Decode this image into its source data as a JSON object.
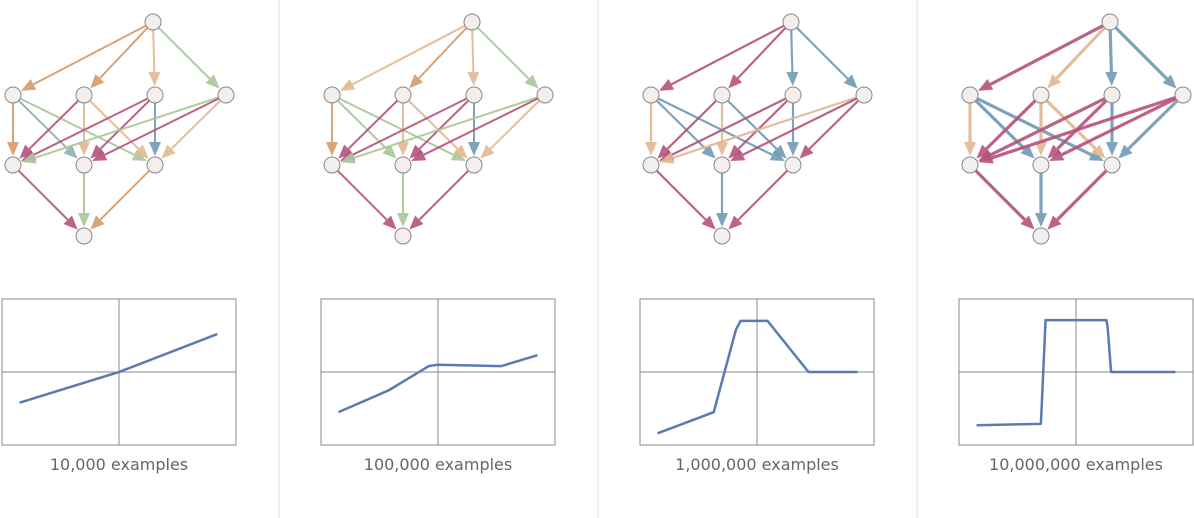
{
  "panels": [
    {
      "caption": "10,000 examples",
      "edge_colors": [
        "#d49a6a",
        "#d49a6a",
        "#e2b890",
        "#a8c69b",
        "#d49a6a",
        "#8fb0ad",
        "#a8c69b",
        "#b5527a",
        "#e2b890",
        "#e2b890",
        "#b5527a",
        "#b5527a",
        "#6f9ab5",
        "#a8c69b",
        "#b5527a",
        "#e2b890",
        "#b5527a",
        "#a8c69b",
        "#d49a6a"
      ],
      "edge_width": 2,
      "plot": {
        "x": [
          -0.85,
          0,
          0.84
        ],
        "values": [
          -0.42,
          0,
          0.52
        ],
        "xlim": [
          -1,
          1
        ],
        "ylim": [
          -1,
          1
        ]
      }
    },
    {
      "caption": "100,000 examples",
      "edge_colors": [
        "#e2b890",
        "#d49a6a",
        "#e2b890",
        "#a8c69b",
        "#d49a6a",
        "#a8c69b",
        "#a8c69b",
        "#b5527a",
        "#e2b890",
        "#e2b890",
        "#b5527a",
        "#b5527a",
        "#6f9ab5",
        "#a8c69b",
        "#b5527a",
        "#e2b890",
        "#b5527a",
        "#a8c69b",
        "#b5527a"
      ],
      "edge_width": 2,
      "plot": {
        "x": [
          -0.85,
          -0.42,
          -0.08,
          0,
          0.54,
          0.85
        ],
        "values": [
          -0.55,
          -0.25,
          0.08,
          0.1,
          0.08,
          0.23
        ],
        "xlim": [
          -1,
          1
        ],
        "ylim": [
          -1,
          1
        ]
      }
    },
    {
      "caption": "1,000,000 examples",
      "edge_colors": [
        "#b5527a",
        "#b5527a",
        "#6f9ab5",
        "#6f9ab5",
        "#e2b890",
        "#6f9ab5",
        "#6f9ab5",
        "#b5527a",
        "#e2b890",
        "#6f9ab5",
        "#b5527a",
        "#b5527a",
        "#6f9ab5",
        "#e2b890",
        "#b5527a",
        "#b5527a",
        "#b5527a",
        "#6f9ab5",
        "#b5527a"
      ],
      "edge_width": 2.2,
      "plot": {
        "x": [
          -0.85,
          -0.37,
          -0.18,
          -0.14,
          0.09,
          0.44,
          0.86
        ],
        "values": [
          -0.84,
          -0.55,
          0.58,
          0.7,
          0.7,
          0,
          0
        ],
        "xlim": [
          -1,
          1
        ],
        "ylim": [
          -1,
          1
        ]
      }
    },
    {
      "caption": "10,000,000 examples",
      "edge_colors": [
        "#b5527a",
        "#e2b890",
        "#6f9ab5",
        "#6f9ab5",
        "#e2b890",
        "#6f9ab5",
        "#6f9ab5",
        "#b5527a",
        "#e2b890",
        "#e2b890",
        "#b5527a",
        "#b5527a",
        "#6f9ab5",
        "#b5527a",
        "#b5527a",
        "#6f9ab5",
        "#b5527a",
        "#6f9ab5",
        "#b5527a"
      ],
      "edge_width": 3.2,
      "plot": {
        "x": [
          -0.85,
          -0.3,
          -0.26,
          0.26,
          0.27,
          0.3,
          0.85
        ],
        "values": [
          -0.73,
          -0.71,
          0.71,
          0.71,
          0.62,
          0,
          0
        ],
        "xlim": [
          -1,
          1
        ],
        "ylim": [
          -1,
          1
        ]
      }
    }
  ]
}
